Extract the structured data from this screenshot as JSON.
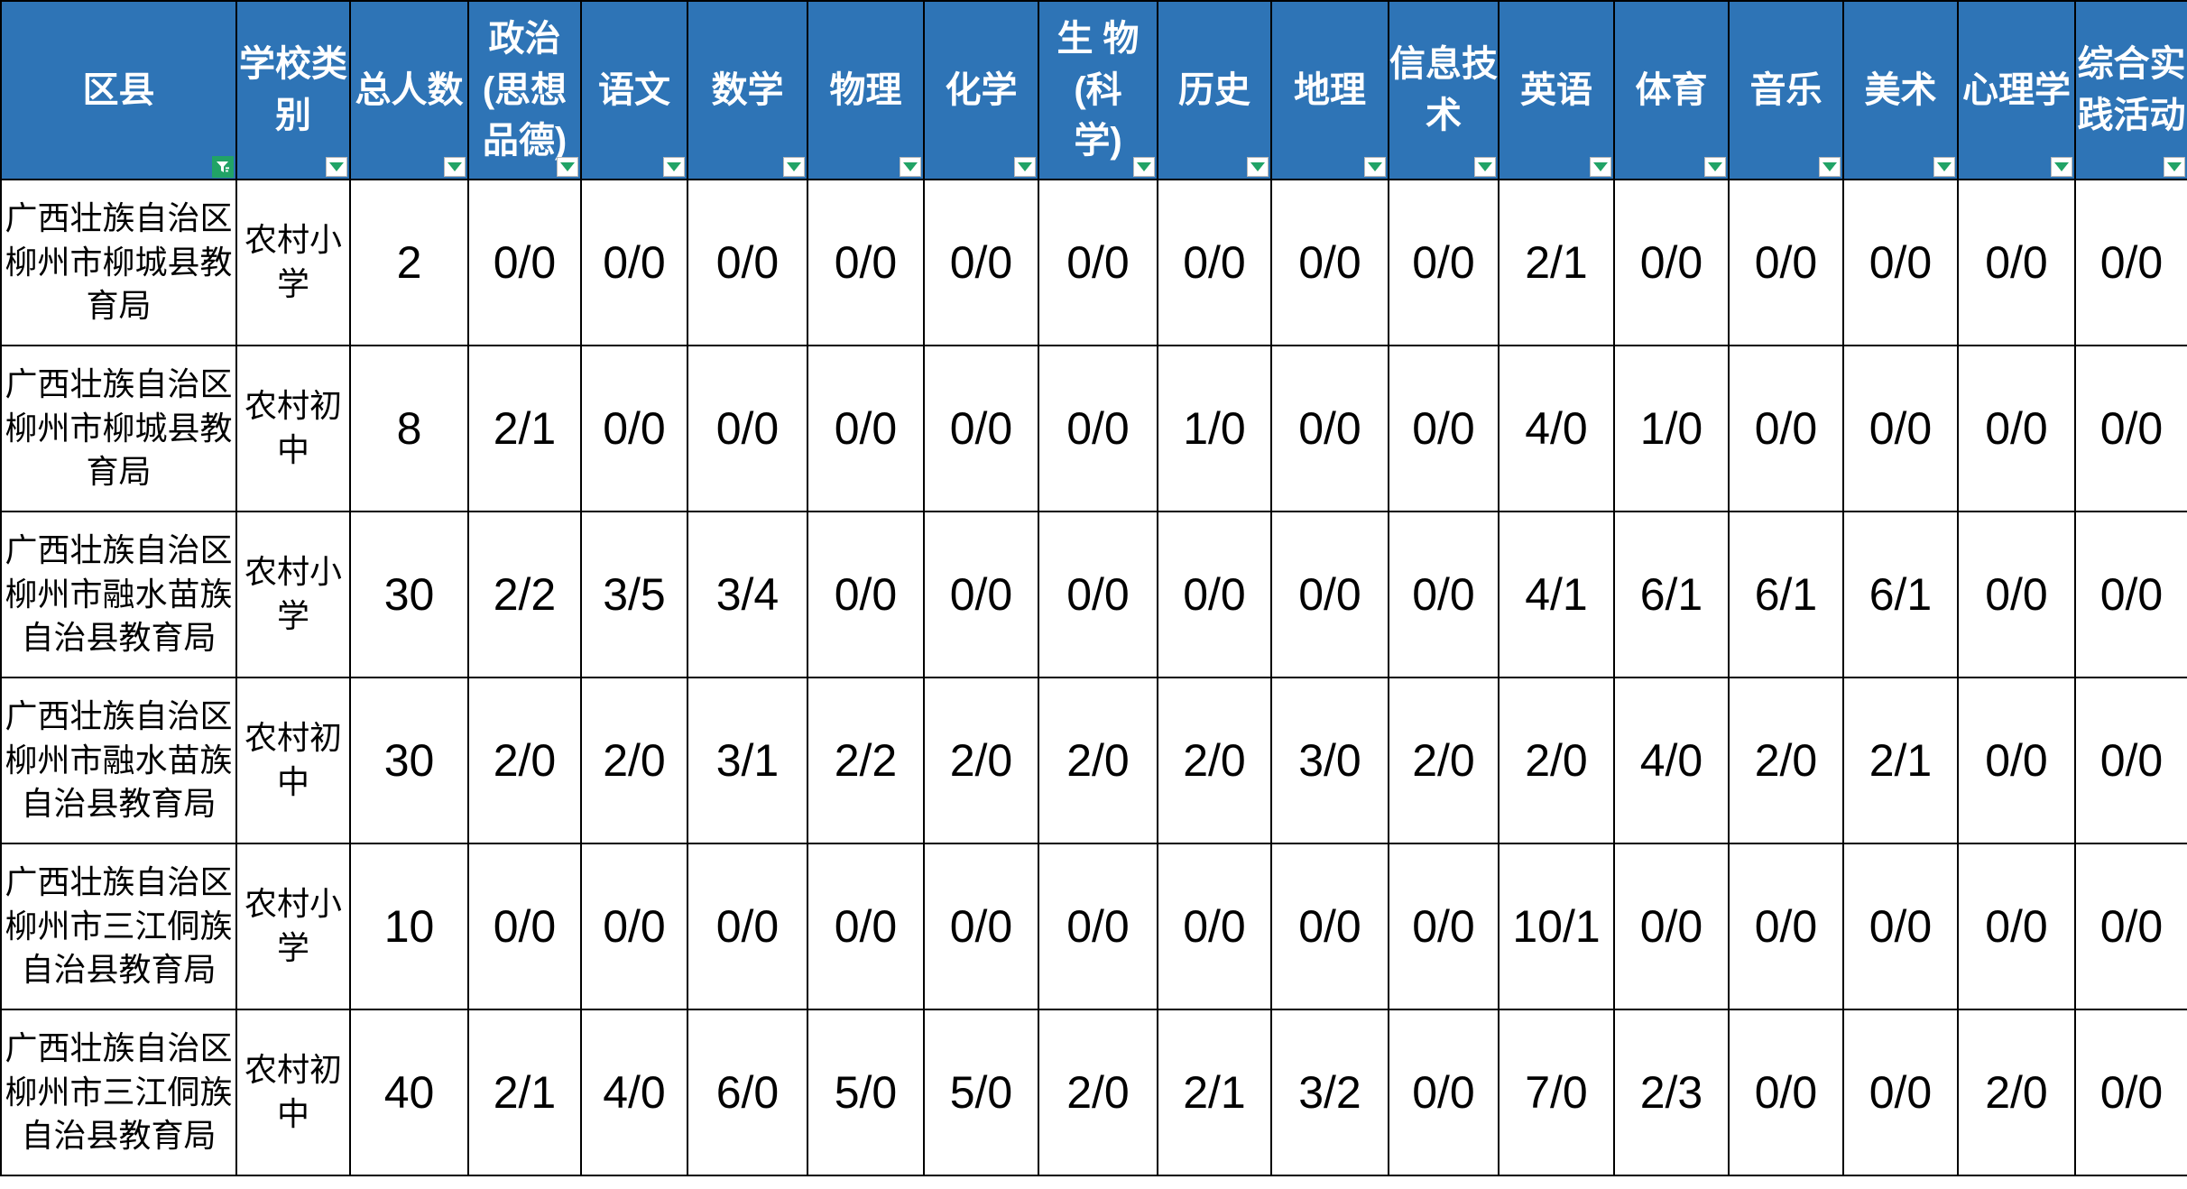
{
  "colors": {
    "header_bg": "#2E74B6",
    "filter_green": "#21A366",
    "grid": "#000000",
    "header_text": "#FFFFFF",
    "data_text": "#000000",
    "cell_bg": "#FFFFFF"
  },
  "table": {
    "columns": [
      {
        "label": "区县",
        "filter": "applied"
      },
      {
        "label": "学校类\n别",
        "filter": "dropdown"
      },
      {
        "label": "总人数",
        "filter": "dropdown"
      },
      {
        "label": "政治\n(思想\n品德)",
        "filter": "dropdown"
      },
      {
        "label": "语文",
        "filter": "dropdown"
      },
      {
        "label": "数学",
        "filter": "dropdown"
      },
      {
        "label": "物理",
        "filter": "dropdown"
      },
      {
        "label": "化学",
        "filter": "dropdown"
      },
      {
        "label": "生 物\n(科\n学)",
        "filter": "dropdown"
      },
      {
        "label": "历史",
        "filter": "dropdown"
      },
      {
        "label": "地理",
        "filter": "dropdown"
      },
      {
        "label": "信息技\n术",
        "filter": "dropdown"
      },
      {
        "label": "英语",
        "filter": "dropdown"
      },
      {
        "label": "体育",
        "filter": "dropdown"
      },
      {
        "label": "音乐",
        "filter": "dropdown"
      },
      {
        "label": "美术",
        "filter": "dropdown"
      },
      {
        "label": "心理学",
        "filter": "dropdown"
      },
      {
        "label": "综合实\n践活动",
        "filter": "dropdown"
      }
    ],
    "subject_order": [
      "政治(思想品德)",
      "语文",
      "数学",
      "物理",
      "化学",
      "生 物(科学)",
      "历史",
      "地理",
      "信息技术",
      "英语",
      "体育",
      "音乐",
      "美术",
      "心理学",
      "综合实践活动"
    ],
    "rows": [
      {
        "district": "广西壮族自治区\n柳州市柳城县教\n育局",
        "school_type": "农村小\n学",
        "total": "2",
        "subjects": [
          "0/0",
          "0/0",
          "0/0",
          "0/0",
          "0/0",
          "0/0",
          "0/0",
          "0/0",
          "0/0",
          "2/1",
          "0/0",
          "0/0",
          "0/0",
          "0/0",
          "0/0"
        ]
      },
      {
        "district": "广西壮族自治区\n柳州市柳城县教\n育局",
        "school_type": "农村初\n中",
        "total": "8",
        "subjects": [
          "2/1",
          "0/0",
          "0/0",
          "0/0",
          "0/0",
          "0/0",
          "1/0",
          "0/0",
          "0/0",
          "4/0",
          "1/0",
          "0/0",
          "0/0",
          "0/0",
          "0/0"
        ]
      },
      {
        "district": "广西壮族自治区\n柳州市融水苗族\n自治县教育局",
        "school_type": "农村小\n学",
        "total": "30",
        "subjects": [
          "2/2",
          "3/5",
          "3/4",
          "0/0",
          "0/0",
          "0/0",
          "0/0",
          "0/0",
          "0/0",
          "4/1",
          "6/1",
          "6/1",
          "6/1",
          "0/0",
          "0/0"
        ]
      },
      {
        "district": "广西壮族自治区\n柳州市融水苗族\n自治县教育局",
        "school_type": "农村初\n中",
        "total": "30",
        "subjects": [
          "2/0",
          "2/0",
          "3/1",
          "2/2",
          "2/0",
          "2/0",
          "2/0",
          "3/0",
          "2/0",
          "2/0",
          "4/0",
          "2/0",
          "2/1",
          "0/0",
          "0/0"
        ]
      },
      {
        "district": "广西壮族自治区\n柳州市三江侗族\n自治县教育局",
        "school_type": "农村小\n学",
        "total": "10",
        "subjects": [
          "0/0",
          "0/0",
          "0/0",
          "0/0",
          "0/0",
          "0/0",
          "0/0",
          "0/0",
          "0/0",
          "10/1",
          "0/0",
          "0/0",
          "0/0",
          "0/0",
          "0/0"
        ]
      },
      {
        "district": "广西壮族自治区\n柳州市三江侗族\n自治县教育局",
        "school_type": "农村初\n中",
        "total": "40",
        "subjects": [
          "2/1",
          "4/0",
          "6/0",
          "5/0",
          "5/0",
          "2/0",
          "2/1",
          "3/2",
          "0/0",
          "7/0",
          "2/3",
          "0/0",
          "0/0",
          "2/0",
          "0/0"
        ]
      }
    ]
  }
}
